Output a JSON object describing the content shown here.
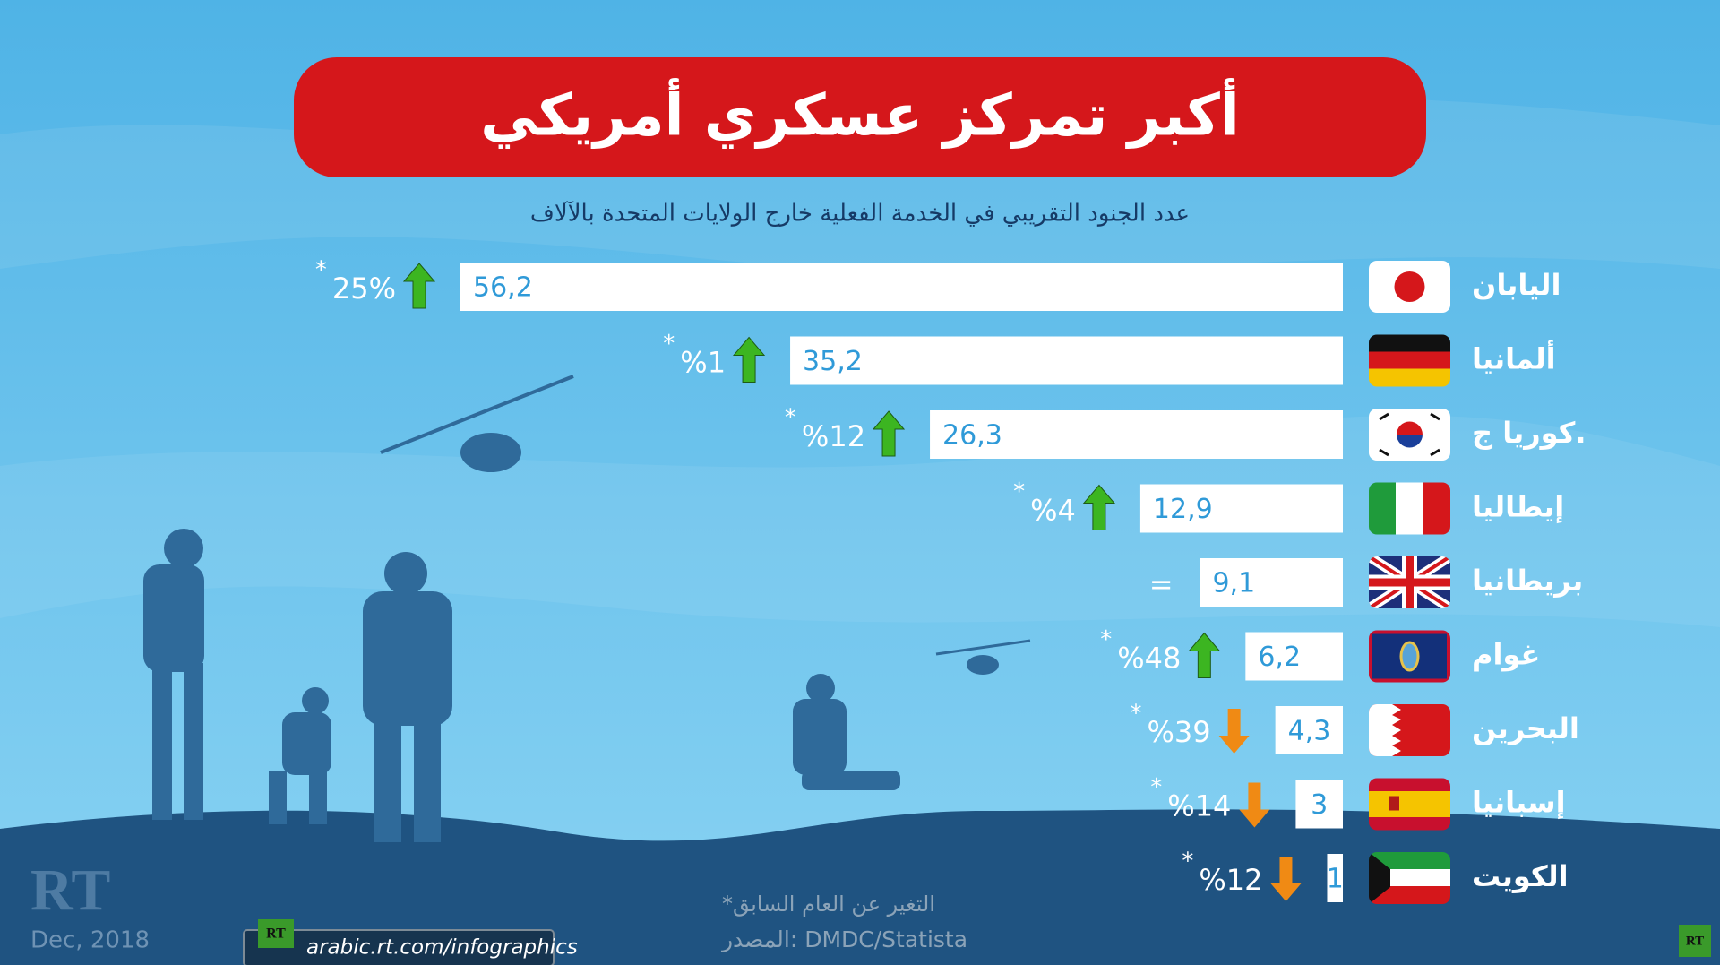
{
  "chart_data": {
    "type": "bar",
    "orientation": "horizontal",
    "title": "أكبر تمركز عسكري أمريكي",
    "subtitle": "عدد الجنود التقريبي في الخدمة الفعلية خارج الولايات المتحدة بالآلاف",
    "categories": [
      "اليابان",
      "ألمانيا",
      "كوريا ج.",
      "إيطاليا",
      "بريطانيا",
      "غوام",
      "البحرين",
      "إسبانيا",
      "الكويت"
    ],
    "values": [
      56.2,
      35.2,
      26.3,
      12.9,
      9.1,
      6.2,
      4.3,
      3,
      1
    ],
    "value_labels": [
      "56,2",
      "35,2",
      "26,3",
      "12,9",
      "9,1",
      "6,2",
      "4,3",
      "3",
      "1"
    ],
    "color": "#ffffff",
    "label_color": "#2f9ad8",
    "change_labels": [
      "25%",
      "%1",
      "%12",
      "%4",
      "=",
      "%48",
      "%39",
      "%14",
      "%12"
    ],
    "change_directions": [
      "up",
      "up",
      "up",
      "up",
      null,
      "up",
      "down",
      "down",
      "down"
    ],
    "change_marker": "*",
    "up_color": "#3cb521",
    "down_color": "#f08a14",
    "footnote": "*التغير عن العام السابق",
    "source": "المصدر: DMDC/Statista",
    "date": "Dec, 2018",
    "logo": "RT",
    "url": "arabic.rt.com/infographics"
  }
}
